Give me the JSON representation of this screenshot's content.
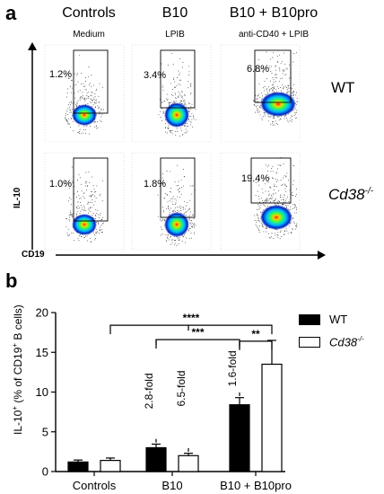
{
  "panel_a": {
    "letter": "a",
    "columns": [
      {
        "header": "Controls",
        "sub": "Medium"
      },
      {
        "header": "B10",
        "sub": "LPIB"
      },
      {
        "header": "B10 + B10pro",
        "sub": "anti-CD40 + LPIB"
      }
    ],
    "rows": [
      {
        "genotype": "WT",
        "percents": [
          "1.2%",
          "3.4%",
          "6.8%"
        ]
      },
      {
        "genotype": "Cd38",
        "genotype_sup": "-/-",
        "percents": [
          "1.0%",
          "1.8%",
          "19.4%"
        ]
      }
    ],
    "y_axis_label": "IL-10",
    "x_axis_label": "CD19",
    "colors": {
      "density_low": "#0020c0",
      "density_mid": "#00c0ff",
      "density_high1": "#40ff40",
      "density_high2": "#ffff00",
      "density_peak": "#ff2000"
    }
  },
  "panel_b": {
    "letter": "b",
    "annotations": [
      {
        "text": "2.8-fold"
      },
      {
        "text": "6.5-fold"
      },
      {
        "text": "1.6-fold"
      }
    ],
    "significance": [
      "****",
      "***",
      "**"
    ]
  },
  "chart_data": {
    "type": "bar",
    "categories": [
      "Controls",
      "B10",
      "B10 + B10pro"
    ],
    "ylabel_parts": [
      "IL-10",
      "+",
      " (% of CD19",
      "+",
      " B cells)"
    ],
    "ylim": [
      0,
      20
    ],
    "yticks": [
      0,
      5,
      10,
      15,
      20
    ],
    "series": [
      {
        "name": "WT",
        "fill": "#000000",
        "values": [
          1.2,
          3.0,
          8.4
        ],
        "errors": [
          0.25,
          0.45,
          0.9
        ]
      },
      {
        "name": "Cd38",
        "name_sup": "-/-",
        "fill": "#ffffff",
        "values": [
          1.4,
          2.0,
          13.5
        ],
        "errors": [
          0.3,
          0.3,
          3.0
        ]
      }
    ],
    "legend_placement": "right",
    "grid": false
  }
}
